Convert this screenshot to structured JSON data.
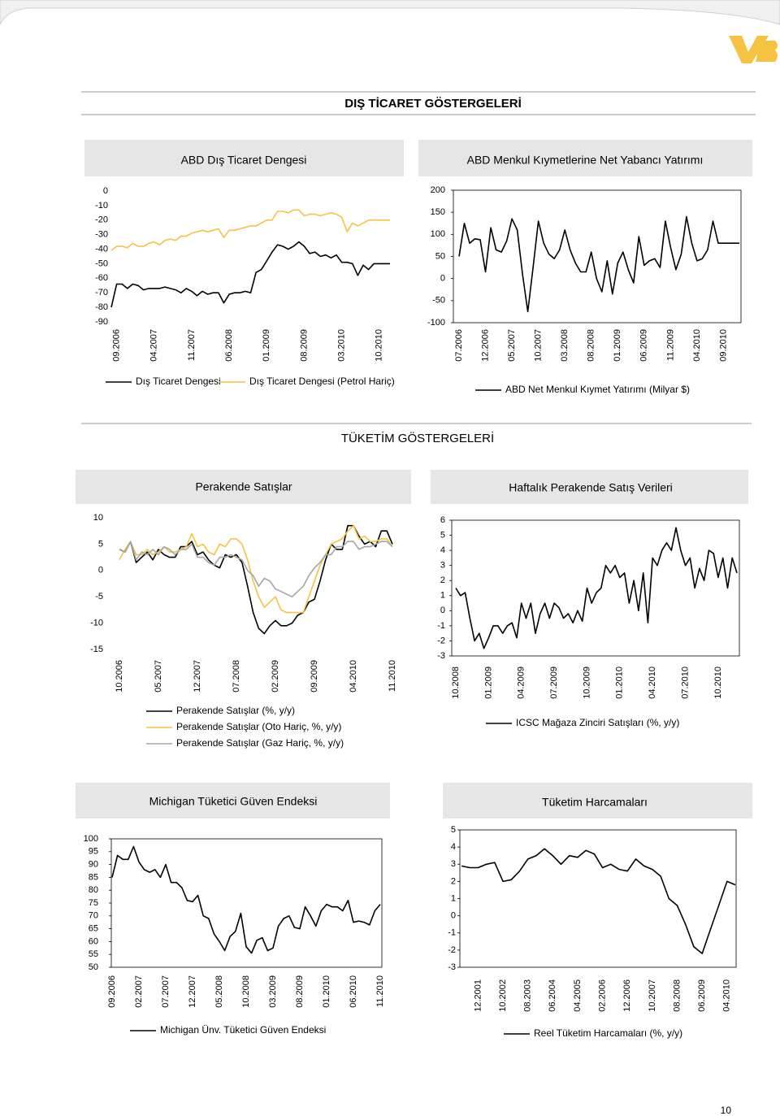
{
  "header": {
    "title": "DIŞ TİCARET GÖSTERGELERİ",
    "section_title": "TÜKETİM GÖSTERGELERİ"
  },
  "page_number": "10",
  "chart_data": [
    {
      "type": "line",
      "title": "ABD Dış Ticaret Dengesi",
      "categories": [
        null,
        "09.2006",
        null,
        null,
        null,
        null,
        null,
        null,
        "04.2007",
        null,
        null,
        null,
        null,
        null,
        null,
        "11.2007",
        null,
        null,
        null,
        null,
        null,
        null,
        "06.2008",
        null,
        null,
        null,
        null,
        null,
        null,
        "01.2009",
        null,
        null,
        null,
        null,
        null,
        null,
        "08.2009",
        null,
        null,
        null,
        null,
        null,
        null,
        "03.2010",
        null,
        null,
        null,
        null,
        null,
        null,
        "10.2010",
        null,
        null
      ],
      "series": [
        {
          "name": "Dış Ticaret Dengesi",
          "color": "#000000",
          "values": [
            -80,
            -64,
            -64,
            -67,
            -64,
            -65,
            -68,
            -67,
            -67,
            -67,
            -66,
            -67,
            -68,
            -70,
            -67,
            -69,
            -72,
            -69,
            -71,
            -70,
            -70,
            -77,
            -71,
            -70,
            -70,
            -69,
            -70,
            -56,
            -54,
            -48,
            -42,
            -37,
            -38,
            -40,
            -38,
            -35,
            -38,
            -43,
            -42,
            -45,
            -44,
            -46,
            -44,
            -49,
            -49,
            -50,
            -58,
            -51,
            -54,
            -50,
            -50,
            -50,
            -50
          ]
        },
        {
          "name": "Dış Ticaret Dengesi (Petrol Hariç)",
          "color": "#f5c242",
          "values": [
            -41,
            -38,
            -38,
            -39,
            -36,
            -38,
            -38,
            -36,
            -35,
            -37,
            -34,
            -33,
            -34,
            -31,
            -31,
            -29,
            -28,
            -27,
            -28,
            -27,
            -26,
            -32,
            -27,
            -27,
            -26,
            -25,
            -24,
            -24,
            -22,
            -20,
            -20,
            -14,
            -14,
            -15,
            -13,
            -13,
            -17,
            -16,
            -16,
            -17,
            -16,
            -15,
            -16,
            -18,
            -28,
            -22,
            -24,
            -22,
            -20,
            -20,
            -20,
            -20,
            -20
          ]
        }
      ],
      "ylim": [
        -90,
        0
      ],
      "yticks": [
        0,
        -10,
        -20,
        -30,
        -40,
        -50,
        -60,
        -70,
        -80,
        -90
      ]
    },
    {
      "type": "line",
      "title": "ABD Menkul Kıymetlerine Net Yabancı Yatırımı",
      "categories": [
        "07.2006",
        null,
        null,
        null,
        null,
        "12.2006",
        null,
        null,
        null,
        null,
        "05.2007",
        null,
        null,
        null,
        null,
        "10.2007",
        null,
        null,
        null,
        null,
        "03.2008",
        null,
        null,
        null,
        null,
        "08.2008",
        null,
        null,
        null,
        null,
        "01.2009",
        null,
        null,
        null,
        null,
        "06.2009",
        null,
        null,
        null,
        null,
        "11.2009",
        null,
        null,
        null,
        null,
        "04.2010",
        null,
        null,
        null,
        null,
        "09.2010",
        null,
        null,
        null
      ],
      "series": [
        {
          "name": "ABD Net Menkul Kıymet Yatırımı (Milyar $)",
          "color": "#000000",
          "values": [
            50,
            125,
            80,
            90,
            88,
            15,
            115,
            65,
            60,
            85,
            135,
            110,
            10,
            -75,
            25,
            130,
            80,
            55,
            45,
            65,
            110,
            65,
            35,
            15,
            15,
            60,
            0,
            -30,
            40,
            -35,
            35,
            60,
            20,
            -10,
            95,
            30,
            40,
            45,
            25,
            130,
            70,
            20,
            55,
            140,
            80,
            40,
            45,
            65,
            130,
            80,
            80,
            80,
            80,
            80
          ]
        }
      ],
      "ylim": [
        -100,
        200
      ],
      "yticks": [
        200,
        150,
        100,
        50,
        0,
        -50,
        -100
      ]
    },
    {
      "type": "line",
      "title": "Perakende Satışlar",
      "categories": [
        "10.2006",
        null,
        null,
        null,
        null,
        null,
        null,
        "05.2007",
        null,
        null,
        null,
        null,
        null,
        null,
        "12.2007",
        null,
        null,
        null,
        null,
        null,
        null,
        "07.2008",
        null,
        null,
        null,
        null,
        null,
        null,
        "02.2009",
        null,
        null,
        null,
        null,
        null,
        null,
        "09.2009",
        null,
        null,
        null,
        null,
        null,
        null,
        "04.2010",
        null,
        null,
        null,
        null,
        null,
        null,
        "11.2010"
      ],
      "series": [
        {
          "name": "Perakende Satışlar (%, y/y)",
          "color": "#000000",
          "values": [
            4,
            3.5,
            5.5,
            1.5,
            2.5,
            3.5,
            2,
            4,
            3,
            2.5,
            2.5,
            4.5,
            4.5,
            5.5,
            3,
            3.5,
            2,
            1,
            0.5,
            3,
            2.5,
            3,
            1.5,
            -3,
            -8,
            -11,
            -12,
            -10.5,
            -9.5,
            -10.5,
            -10.5,
            -10,
            -8.5,
            -8,
            -6,
            -5.5,
            -2,
            2,
            5,
            4,
            4,
            8.5,
            8.5,
            6.5,
            5,
            5.5,
            4.5,
            7.5,
            7.5,
            5
          ]
        },
        {
          "name": "Perakende Satışlar (Oto Hariç, %, y/y)",
          "color": "#f5c242",
          "values": [
            2,
            4,
            5.5,
            3,
            3,
            4,
            3,
            3.5,
            4.5,
            3.5,
            3.5,
            4,
            4.5,
            7,
            4.5,
            5,
            3.5,
            3,
            5,
            4.5,
            6,
            6,
            5,
            2,
            -2,
            -5,
            -7,
            -6,
            -5,
            -7.5,
            -8,
            -8,
            -8,
            -8,
            -5,
            -2,
            1,
            3,
            5,
            5.5,
            6,
            7.5,
            8.5,
            6,
            6.5,
            5.5,
            5.5,
            6,
            6,
            4.5
          ]
        },
        {
          "name": "Perakende Satışlar (Gaz Hariç, %, y/y)",
          "color": "#a6a6a6",
          "values": [
            4,
            3.5,
            5.5,
            2,
            3.5,
            3,
            4,
            3,
            4.5,
            4,
            3,
            4,
            4,
            5,
            2.5,
            2.5,
            1.5,
            1,
            2.5,
            2.5,
            3,
            2.5,
            2,
            0,
            -1,
            -3,
            -1.5,
            -2,
            -3.5,
            -4,
            -4.5,
            -5,
            -4,
            -3,
            -1,
            0.5,
            1.5,
            3,
            3,
            4.5,
            4.5,
            5.5,
            5.5,
            4,
            4.5,
            4.5,
            5,
            5.5,
            5.5,
            4.5
          ]
        }
      ],
      "ylim": [
        -15,
        10
      ],
      "yticks": [
        10,
        5,
        0,
        -5,
        -10,
        -15
      ]
    },
    {
      "type": "line",
      "title": "Haftalık Perakende Satış Verileri",
      "categories": [
        "10.2008",
        null,
        null,
        null,
        null,
        null,
        null,
        "01.2009",
        null,
        null,
        null,
        null,
        null,
        null,
        "04.2009",
        null,
        null,
        null,
        null,
        null,
        null,
        "07.2009",
        null,
        null,
        null,
        null,
        null,
        null,
        "10.2009",
        null,
        null,
        null,
        null,
        null,
        null,
        "01.2010",
        null,
        null,
        null,
        null,
        null,
        null,
        "04.2010",
        null,
        null,
        null,
        null,
        null,
        null,
        "07.2010",
        null,
        null,
        null,
        null,
        null,
        null,
        "10.2010",
        null,
        null,
        null,
        null
      ],
      "series": [
        {
          "name": "ICSC Mağaza Zinciri Satışları (%, y/y)",
          "color": "#000000",
          "values": [
            1.5,
            1.0,
            1.2,
            -0.5,
            -2.0,
            -1.5,
            -2.5,
            -1.8,
            -1.0,
            -1.0,
            -1.5,
            -1.0,
            -0.8,
            -1.8,
            0.5,
            -0.5,
            0.5,
            -1.5,
            -0.2,
            0.5,
            -0.5,
            0.5,
            0.2,
            -0.5,
            -0.2,
            -0.8,
            0.0,
            -0.7,
            1.5,
            0.5,
            1.2,
            1.5,
            3.0,
            2.5,
            3.0,
            2.2,
            2.5,
            0.5,
            2.0,
            0.0,
            2.5,
            -0.8,
            3.5,
            3.0,
            4.0,
            4.5,
            4.0,
            5.5,
            4.0,
            3.0,
            3.5,
            1.5,
            2.8,
            2.0,
            4.0,
            3.8,
            2.2,
            3.5,
            1.5,
            3.5,
            2.5
          ]
        }
      ],
      "ylim": [
        -3,
        6
      ],
      "yticks": [
        6,
        5,
        4,
        3,
        2,
        1,
        0,
        -1,
        -2,
        -3
      ]
    },
    {
      "type": "line",
      "title": "Michigan Tüketici Güven Endeksi",
      "categories": [
        "09.2006",
        null,
        null,
        null,
        null,
        "02.2007",
        null,
        null,
        null,
        null,
        "07.2007",
        null,
        null,
        null,
        null,
        "12.2007",
        null,
        null,
        null,
        null,
        "05.2008",
        null,
        null,
        null,
        null,
        "10.2008",
        null,
        null,
        null,
        null,
        "03.2009",
        null,
        null,
        null,
        null,
        "08.2009",
        null,
        null,
        null,
        null,
        "01.2010",
        null,
        null,
        null,
        null,
        "06.2010",
        null,
        null,
        null,
        null,
        "11.2010"
      ],
      "series": [
        {
          "name": "Michigan Ünv. Tüketici Güven Endeksi",
          "color": "#000000",
          "values": [
            85,
            93.5,
            92,
            92,
            97,
            91,
            88,
            87,
            88,
            85,
            90,
            83,
            83,
            81,
            76,
            75.5,
            78,
            70,
            69,
            63,
            60,
            56.5,
            62,
            64,
            71,
            58,
            55.5,
            60.5,
            61.5,
            56.5,
            57.5,
            66,
            69,
            70,
            65.5,
            65,
            73.5,
            70,
            66,
            72,
            74.5,
            73.5,
            73.5,
            72,
            76,
            67.5,
            68,
            67.5,
            66.5,
            72,
            74.5
          ]
        }
      ],
      "ylim": [
        50,
        100
      ],
      "yticks": [
        100,
        95,
        90,
        85,
        80,
        75,
        70,
        65,
        60,
        55,
        50
      ]
    },
    {
      "type": "line",
      "title": "Tüketim Harcamaları",
      "categories": [
        null,
        null,
        "12.2001",
        null,
        null,
        "10.2002",
        null,
        null,
        "08.2003",
        null,
        null,
        "06.2004",
        null,
        null,
        "04.2005",
        null,
        null,
        "02.2006",
        null,
        null,
        "12.2006",
        null,
        null,
        "10.2007",
        null,
        null,
        "08.2008",
        null,
        null,
        "06.2009",
        null,
        null,
        "04.2010",
        null
      ],
      "series": [
        {
          "name": "Reel Tüketim Harcamaları (%, y/y)",
          "color": "#000000",
          "values": [
            2.9,
            2.8,
            2.8,
            3.0,
            3.1,
            2.0,
            2.1,
            2.6,
            3.3,
            3.5,
            3.9,
            3.5,
            3.0,
            3.5,
            3.4,
            3.8,
            3.6,
            2.8,
            3.0,
            2.7,
            2.6,
            3.3,
            2.9,
            2.7,
            2.3,
            1.0,
            0.6,
            -0.5,
            -1.8,
            -2.2,
            -0.8,
            0.6,
            2.0,
            1.8
          ]
        }
      ],
      "ylim": [
        -3,
        5
      ],
      "yticks": [
        5,
        4,
        3,
        2,
        1,
        0,
        -1,
        -2,
        -3
      ]
    }
  ]
}
